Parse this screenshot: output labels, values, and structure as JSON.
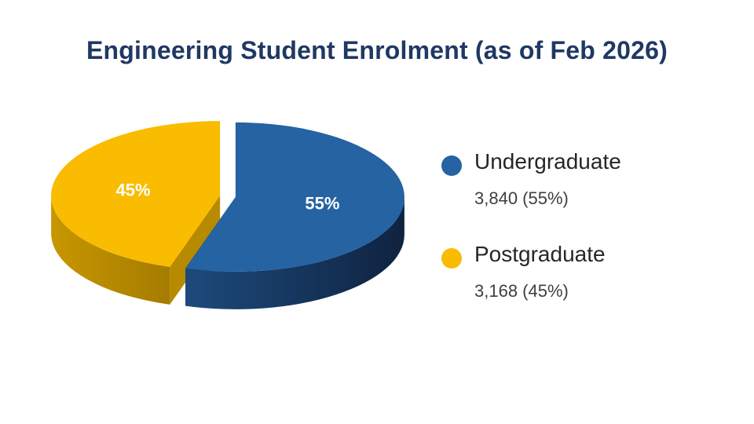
{
  "slide": {
    "title": "Engineering Student Enrolment (as of Feb 2026)"
  },
  "chart_data": {
    "type": "pie",
    "title": "Engineering Student Enrolment (as of Feb 2026)",
    "style": "3d-exploded",
    "categories": [
      "Undergraduate",
      "Postgraduate"
    ],
    "values": [
      3840,
      3168
    ],
    "percent_labels": [
      "55%",
      "45%"
    ],
    "colors": [
      "#2563a3",
      "#f9bc00"
    ],
    "legend_position": "right"
  },
  "legend": {
    "items": [
      {
        "name": "Undergraduate",
        "value": "3,840 (55%)",
        "color": "#2563a3"
      },
      {
        "name": "Postgraduate",
        "value": "3,168 (45%)",
        "color": "#f9bc00"
      }
    ]
  }
}
